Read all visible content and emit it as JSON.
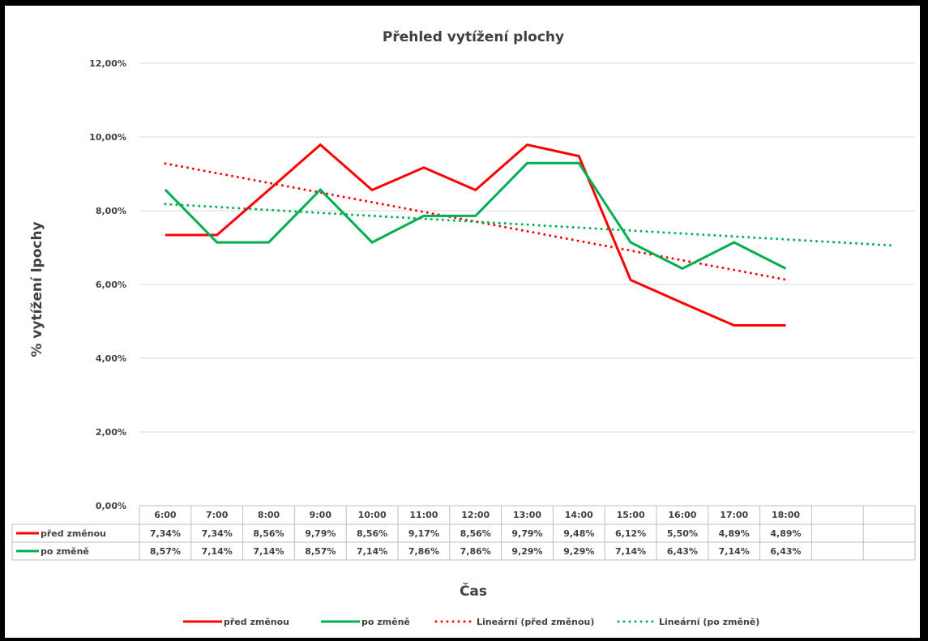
{
  "colors": {
    "pred": "#ff0000",
    "po": "#00b050",
    "grid": "#d9d9d9",
    "text": "#404040"
  },
  "chart_data": {
    "type": "line",
    "title": "Přehled vytížení plochy",
    "xlabel": "Čas",
    "ylabel": "% vytížení lpochy",
    "ylim": [
      0,
      12
    ],
    "yticks": [
      "0,00%",
      "2,00%",
      "4,00%",
      "6,00%",
      "8,00%",
      "10,00%",
      "12,00%"
    ],
    "grid": true,
    "legend_position": "bottom",
    "categories": [
      "6:00",
      "7:00",
      "8:00",
      "9:00",
      "10:00",
      "11:00",
      "12:00",
      "13:00",
      "14:00",
      "15:00",
      "16:00",
      "17:00",
      "18:00"
    ],
    "series": [
      {
        "name": "před změnou",
        "color": "#ff0000",
        "values": [
          7.34,
          7.34,
          8.56,
          9.79,
          8.56,
          9.17,
          8.56,
          9.79,
          9.48,
          6.12,
          5.5,
          4.89,
          4.89
        ],
        "labels": [
          "7,34%",
          "7,34%",
          "8,56%",
          "9,79%",
          "8,56%",
          "9,17%",
          "8,56%",
          "9,79%",
          "9,48%",
          "6,12%",
          "5,50%",
          "4,89%",
          "4,89%"
        ]
      },
      {
        "name": "po změně",
        "color": "#00b050",
        "values": [
          8.57,
          7.14,
          7.14,
          8.57,
          7.14,
          7.86,
          7.86,
          9.29,
          9.29,
          7.14,
          6.43,
          7.14,
          6.43
        ],
        "labels": [
          "8,57%",
          "7,14%",
          "7,14%",
          "8,57%",
          "7,14%",
          "7,86%",
          "7,86%",
          "9,29%",
          "9,29%",
          "7,14%",
          "6,43%",
          "7,14%",
          "6,43%"
        ]
      }
    ],
    "trendlines": [
      {
        "name": "Lineární (před změnou)",
        "color": "#ff0000",
        "y_start": 9.28,
        "y_end": 6.13,
        "x_end": "18:00"
      },
      {
        "name": "Lineární (po změně)",
        "color": "#00b050",
        "y_start": 8.18,
        "y_end": 7.06
      }
    ]
  }
}
